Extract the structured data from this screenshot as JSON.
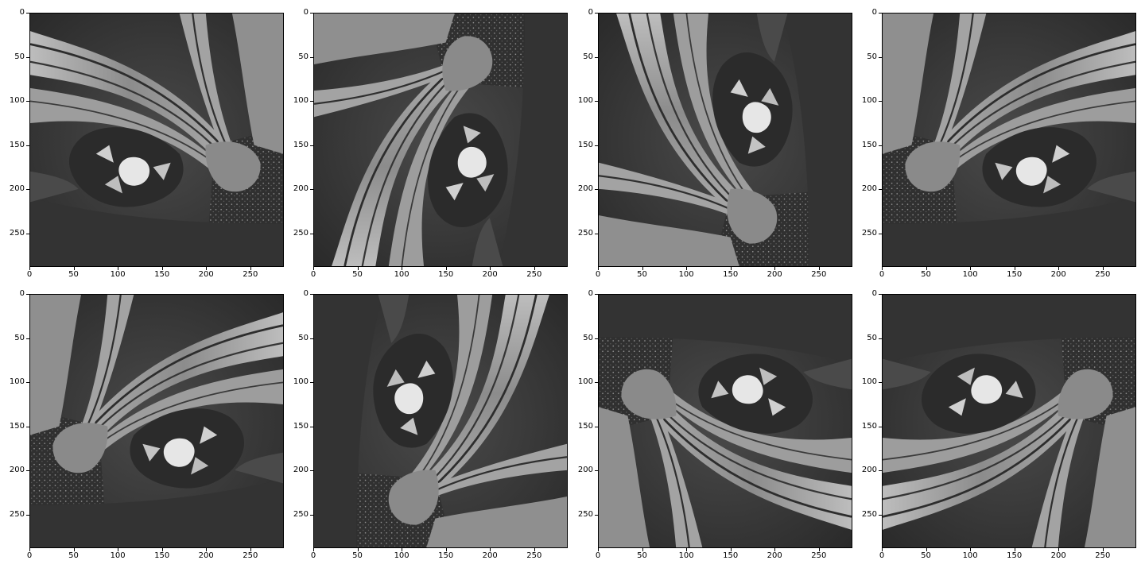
{
  "figure": {
    "x_tick_labels": [
      "0",
      "50",
      "100",
      "150",
      "200",
      "250"
    ],
    "y_tick_labels": [
      "0",
      "50",
      "100",
      "150",
      "200",
      "250"
    ],
    "panels": [
      {
        "id": "r1c1",
        "transform": "rot0"
      },
      {
        "id": "r1c2",
        "transform": "rot270"
      },
      {
        "id": "r1c3",
        "transform": "flipH_rot270"
      },
      {
        "id": "r1c4",
        "transform": "flipH"
      },
      {
        "id": "r2c1",
        "transform": "flipV_rot180"
      },
      {
        "id": "r2c2",
        "transform": "rot90"
      },
      {
        "id": "r2c3",
        "transform": "rot180"
      },
      {
        "id": "r2c4",
        "transform": "flipV"
      }
    ]
  }
}
